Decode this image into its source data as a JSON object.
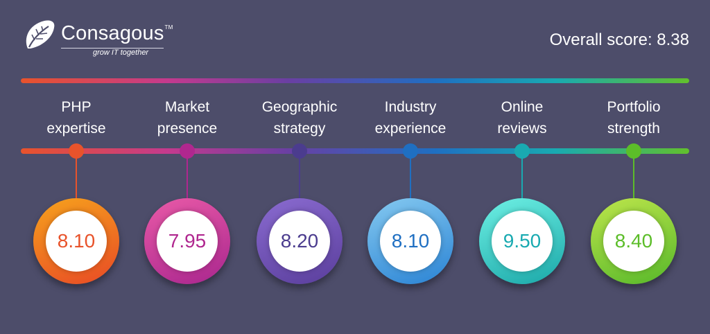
{
  "brand": {
    "name": "Consagous",
    "trademark": "TM",
    "tagline": "grow IT together"
  },
  "overall": {
    "label": "Overall score: 8.38"
  },
  "metrics": [
    {
      "line1": "PHP",
      "line2": "expertise",
      "score": "8.10",
      "color": "#e8532b",
      "ring_from": "#f6a21d",
      "ring_to": "#e84a25"
    },
    {
      "line1": "Market",
      "line2": "presence",
      "score": "7.95",
      "color": "#b0278f",
      "ring_from": "#e95aa7",
      "ring_to": "#a9268e"
    },
    {
      "line1": "Geographic",
      "line2": "strategy",
      "score": "8.20",
      "color": "#4b3c8e",
      "ring_from": "#8a6bd0",
      "ring_to": "#5a3e9c"
    },
    {
      "line1": "Industry",
      "line2": "experience",
      "score": "8.10",
      "color": "#1f6fc2",
      "ring_from": "#85c9f0",
      "ring_to": "#2a83d4"
    },
    {
      "line1": "Online",
      "line2": "reviews",
      "score": "9.50",
      "color": "#19aab1",
      "ring_from": "#6ef0e4",
      "ring_to": "#1aa7a8"
    },
    {
      "line1": "Portfolio",
      "line2": "strength",
      "score": "8.40",
      "color": "#5cbd29",
      "ring_from": "#bde54b",
      "ring_to": "#57b82a"
    }
  ]
}
